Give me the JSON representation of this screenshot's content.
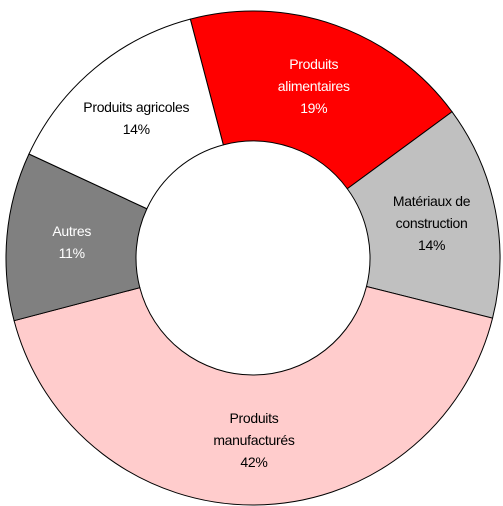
{
  "chart_data": {
    "type": "donut",
    "categories": [
      "Produits alimentaires",
      "Matériaux de construction",
      "Produits manufacturés",
      "Autres",
      "Produits agricoles"
    ],
    "values": [
      19,
      14,
      42,
      11,
      14
    ],
    "value_labels": [
      "19%",
      "14%",
      "42%",
      "11%",
      "14%"
    ],
    "colors": [
      "#ff0000",
      "#c0c0c0",
      "#ffcccc",
      "#808080",
      "#ffffff"
    ]
  }
}
